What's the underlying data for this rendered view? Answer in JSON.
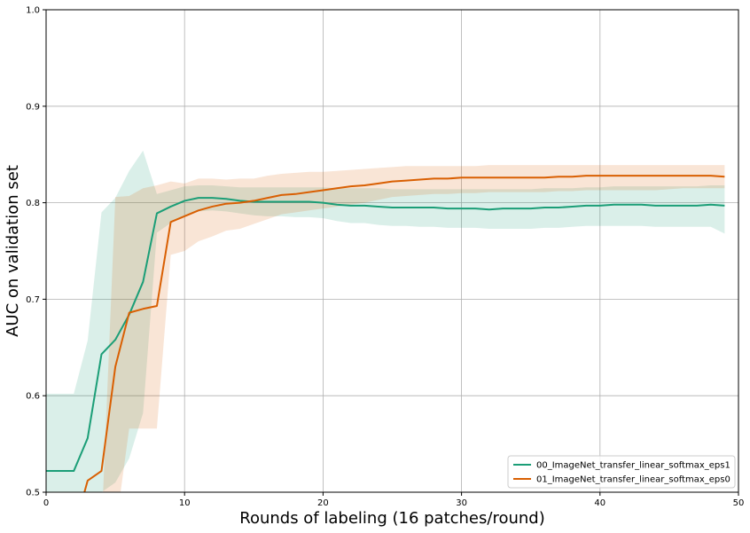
{
  "chart_data": {
    "type": "line",
    "xlabel": "Rounds of labeling (16 patches/round)",
    "ylabel": "AUC on validation set",
    "xlim": [
      0,
      50
    ],
    "ylim": [
      0.5,
      1.0
    ],
    "xticks": [
      0,
      10,
      20,
      30,
      40,
      50
    ],
    "yticks": [
      0.5,
      0.6,
      0.7,
      0.8,
      0.9,
      1.0
    ],
    "xtick_labels": [
      "0",
      "10",
      "20",
      "30",
      "40",
      "50"
    ],
    "ytick_labels": [
      "0.5",
      "0.6",
      "0.7",
      "0.8",
      "0.9",
      "1.0"
    ],
    "grid": true,
    "legend_position": "lower-right",
    "series": [
      {
        "name": "00_ImageNet_transfer_linear_softmax_eps1",
        "color": "#1b9e77",
        "x": [
          0,
          2,
          3,
          4,
          5,
          6,
          7,
          8,
          9,
          10,
          11,
          12,
          13,
          14,
          15,
          16,
          17,
          18,
          19,
          20,
          21,
          22,
          23,
          24,
          25,
          26,
          27,
          28,
          29,
          30,
          31,
          32,
          33,
          34,
          35,
          36,
          37,
          38,
          39,
          40,
          41,
          42,
          43,
          44,
          45,
          46,
          47,
          48,
          49
        ],
        "y": [
          0.522,
          0.522,
          0.556,
          0.643,
          0.658,
          0.684,
          0.718,
          0.789,
          0.796,
          0.802,
          0.805,
          0.805,
          0.804,
          0.802,
          0.801,
          0.801,
          0.801,
          0.801,
          0.801,
          0.8,
          0.798,
          0.797,
          0.797,
          0.796,
          0.795,
          0.795,
          0.795,
          0.795,
          0.794,
          0.794,
          0.794,
          0.793,
          0.794,
          0.794,
          0.794,
          0.795,
          0.795,
          0.796,
          0.797,
          0.797,
          0.798,
          0.798,
          0.798,
          0.797,
          0.797,
          0.797,
          0.797,
          0.798,
          0.797
        ],
        "upper": [
          0.602,
          0.602,
          0.657,
          0.79,
          0.805,
          0.833,
          0.854,
          0.809,
          0.813,
          0.817,
          0.818,
          0.818,
          0.817,
          0.816,
          0.816,
          0.816,
          0.816,
          0.816,
          0.816,
          0.816,
          0.815,
          0.815,
          0.815,
          0.815,
          0.814,
          0.814,
          0.814,
          0.814,
          0.814,
          0.814,
          0.814,
          0.814,
          0.814,
          0.814,
          0.814,
          0.815,
          0.815,
          0.815,
          0.816,
          0.816,
          0.817,
          0.817,
          0.817,
          0.817,
          0.817,
          0.817,
          0.817,
          0.818,
          0.818
        ],
        "lower": [
          0.5,
          0.5,
          0.5,
          0.5,
          0.51,
          0.535,
          0.582,
          0.769,
          0.779,
          0.787,
          0.791,
          0.792,
          0.791,
          0.789,
          0.787,
          0.786,
          0.786,
          0.785,
          0.785,
          0.784,
          0.781,
          0.779,
          0.779,
          0.777,
          0.776,
          0.776,
          0.775,
          0.775,
          0.774,
          0.774,
          0.774,
          0.773,
          0.773,
          0.773,
          0.773,
          0.774,
          0.774,
          0.775,
          0.776,
          0.776,
          0.776,
          0.776,
          0.776,
          0.775,
          0.775,
          0.775,
          0.775,
          0.775,
          0.768
        ]
      },
      {
        "name": "01_ImageNet_transfer_linear_softmax_eps0",
        "color": "#d95f02",
        "x": [
          0,
          1,
          2,
          3,
          4,
          5,
          6,
          7,
          8,
          9,
          10,
          11,
          12,
          13,
          14,
          15,
          16,
          17,
          18,
          19,
          20,
          21,
          22,
          23,
          24,
          25,
          26,
          27,
          28,
          29,
          30,
          31,
          32,
          33,
          34,
          35,
          36,
          37,
          38,
          39,
          40,
          41,
          42,
          43,
          44,
          45,
          46,
          47,
          48,
          49
        ],
        "y": [
          0.46,
          0.46,
          0.46,
          0.512,
          0.522,
          0.63,
          0.686,
          0.69,
          0.693,
          0.78,
          0.786,
          0.792,
          0.796,
          0.799,
          0.8,
          0.802,
          0.805,
          0.808,
          0.809,
          0.811,
          0.813,
          0.815,
          0.817,
          0.818,
          0.82,
          0.822,
          0.823,
          0.824,
          0.825,
          0.825,
          0.826,
          0.826,
          0.826,
          0.826,
          0.826,
          0.826,
          0.826,
          0.827,
          0.827,
          0.828,
          0.828,
          0.828,
          0.828,
          0.828,
          0.828,
          0.828,
          0.828,
          0.828,
          0.828,
          0.827
        ],
        "upper": [
          0.46,
          0.46,
          0.46,
          0.46,
          0.46,
          0.806,
          0.807,
          0.815,
          0.818,
          0.822,
          0.82,
          0.825,
          0.825,
          0.824,
          0.825,
          0.825,
          0.828,
          0.83,
          0.831,
          0.832,
          0.832,
          0.833,
          0.834,
          0.835,
          0.836,
          0.837,
          0.838,
          0.838,
          0.838,
          0.838,
          0.838,
          0.838,
          0.839,
          0.839,
          0.839,
          0.839,
          0.839,
          0.839,
          0.839,
          0.839,
          0.839,
          0.839,
          0.839,
          0.839,
          0.839,
          0.839,
          0.839,
          0.839,
          0.839,
          0.839
        ],
        "lower": [
          0.46,
          0.46,
          0.46,
          0.46,
          0.46,
          0.46,
          0.566,
          0.566,
          0.566,
          0.746,
          0.75,
          0.76,
          0.765,
          0.771,
          0.773,
          0.778,
          0.783,
          0.788,
          0.79,
          0.792,
          0.794,
          0.796,
          0.798,
          0.8,
          0.803,
          0.806,
          0.807,
          0.808,
          0.809,
          0.809,
          0.81,
          0.81,
          0.811,
          0.811,
          0.811,
          0.811,
          0.811,
          0.812,
          0.812,
          0.813,
          0.813,
          0.813,
          0.813,
          0.813,
          0.813,
          0.814,
          0.815,
          0.815,
          0.815,
          0.815
        ]
      }
    ]
  }
}
